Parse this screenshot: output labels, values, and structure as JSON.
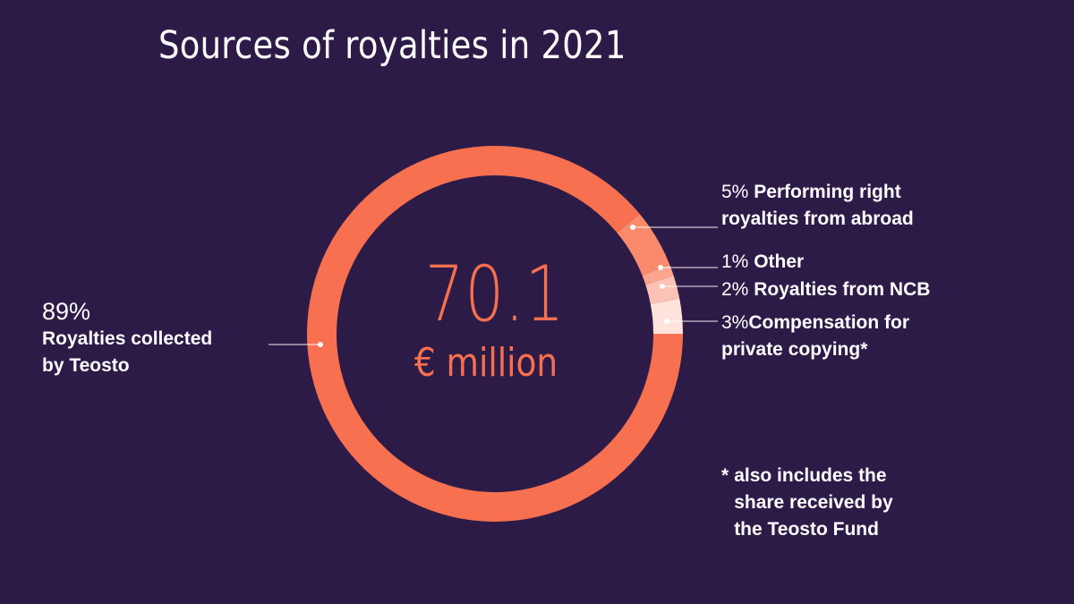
{
  "title": "Sources of royalties in 2021",
  "center": {
    "value": "70.1",
    "unit": "€ million"
  },
  "labels": {
    "teosto": {
      "pct": "89%",
      "lines": [
        "Royalties collected",
        "by Teosto"
      ]
    },
    "abroad": {
      "pct": "5%",
      "lines": [
        "Performing right",
        "royalties from abroad"
      ]
    },
    "other": {
      "pct": "1%",
      "lines": [
        "Other"
      ]
    },
    "ncb": {
      "pct": "2%",
      "lines": [
        "Royalties from NCB"
      ]
    },
    "copying": {
      "pct": "3%",
      "lines": [
        "Compensation for",
        "private copying*"
      ]
    }
  },
  "footnote": {
    "marker": "*",
    "lines": [
      "also includes the",
      "share received by",
      "the Teosto Fund"
    ]
  },
  "colors": {
    "background": "#2d1b47",
    "teosto": "#f7704f",
    "abroad": "#fa8a6c",
    "other": "#fca48d",
    "ncb": "#fdc2b3",
    "copying": "#fde3dc",
    "text": "#ffffff"
  },
  "chart_data": {
    "type": "pie",
    "variant": "donut",
    "title": "Sources of royalties in 2021",
    "center_label": "70.1 € million",
    "total": 70.1,
    "unit": "€ million",
    "categories": [
      "Royalties collected by Teosto",
      "Performing right royalties from abroad",
      "Other",
      "Royalties from NCB",
      "Compensation for private copying*"
    ],
    "values": [
      89,
      5,
      1,
      2,
      3
    ],
    "value_unit": "%",
    "annotations": [
      "* also includes the share received by the Teosto Fund"
    ],
    "legend": "none (direct leader-line labels)"
  }
}
